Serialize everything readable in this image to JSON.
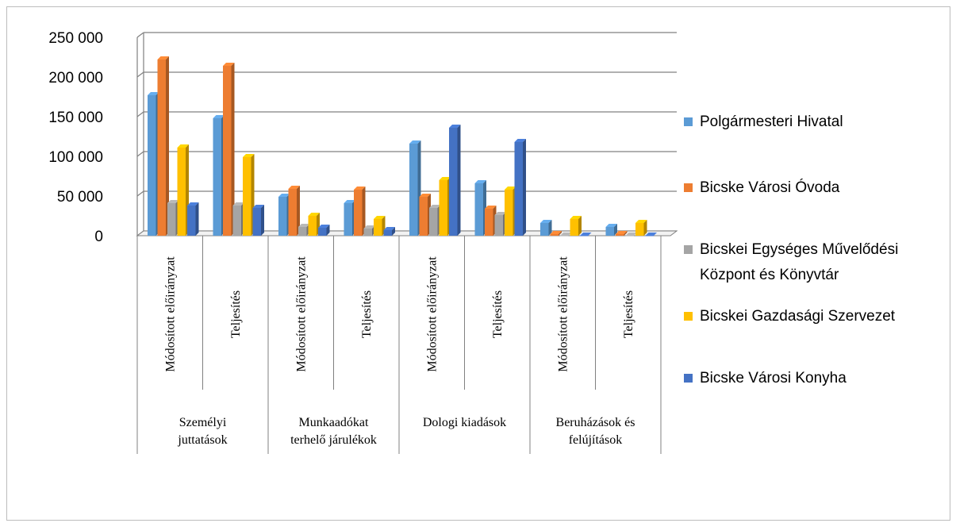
{
  "chart_data": {
    "type": "bar",
    "ylim": [
      0,
      250000
    ],
    "yticks": [
      "0",
      "50 000",
      "100 000",
      "150 000",
      "200 000",
      "250 000"
    ],
    "ytick_values": [
      0,
      50000,
      100000,
      150000,
      200000,
      250000
    ],
    "grid": true,
    "legend_position": "right",
    "categories": [
      "Módosított előirányzat",
      "Teljesítés",
      "Módosított előirányzat",
      "Teljesítés",
      "Módosított előirányzat",
      "Teljesítés",
      "Módosított előirányzat",
      "Teljesítés"
    ],
    "groups": [
      {
        "label_lines": [
          "Személyi",
          "juttatások"
        ],
        "span": 2
      },
      {
        "label_lines": [
          "Munkaadókat",
          "terhelő járulékok"
        ],
        "span": 2
      },
      {
        "label_lines": [
          "Dologi kiadások"
        ],
        "span": 2
      },
      {
        "label_lines": [
          "Beruházások és",
          "felújítások"
        ],
        "span": 2
      }
    ],
    "series": [
      {
        "name": "Polgármesteri Hivatal",
        "color": "#5b9bd5",
        "values": [
          177000,
          148000,
          49000,
          41000,
          116000,
          66000,
          16000,
          11000
        ]
      },
      {
        "name": "Bicske Városi Óvoda",
        "color": "#ed7d31",
        "values": [
          222000,
          214000,
          59000,
          58000,
          49000,
          34000,
          2000,
          2000
        ]
      },
      {
        "name_lines": [
          "Bicskei Egységes Művelődési",
          "Központ és Könyvtár"
        ],
        "color": "#a5a5a5",
        "values": [
          41000,
          38000,
          11000,
          9000,
          35000,
          26000,
          0,
          0
        ]
      },
      {
        "name": "Bicskei Gazdasági Szervezet",
        "color": "#ffc000",
        "values": [
          111000,
          99000,
          25000,
          21000,
          70000,
          58000,
          21000,
          16000
        ]
      },
      {
        "name": "Bicske Városi Konyha",
        "color": "#4472c4",
        "values": [
          38000,
          35000,
          10000,
          7000,
          136000,
          118000,
          0,
          0
        ]
      }
    ]
  }
}
